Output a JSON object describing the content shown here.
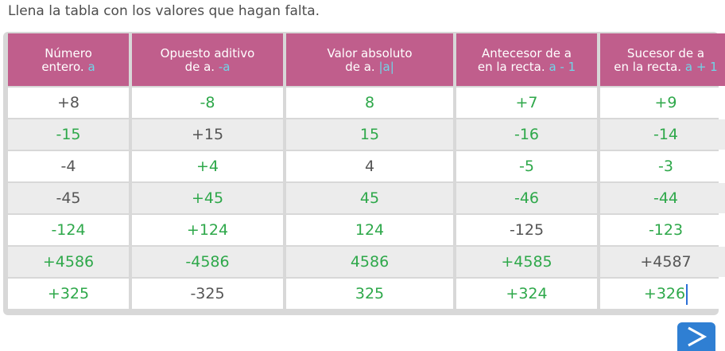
{
  "instruction": "Llena la tabla con los valores que hagan falta.",
  "headers": [
    {
      "line1": "Número",
      "line2": "entero.",
      "var": "a"
    },
    {
      "line1": "Opuesto aditivo",
      "line2": "de a.",
      "var": "-a"
    },
    {
      "line1": "Valor absoluto",
      "line2": "de a.",
      "var": "|a|"
    },
    {
      "line1": "Antecesor de a",
      "line2": "en la recta.",
      "var": "a - 1"
    },
    {
      "line1": "Sucesor de a",
      "line2": "en la recta.",
      "var": "a + 1"
    }
  ],
  "rows": [
    [
      "+8",
      "-8",
      "8",
      "+7",
      "+9"
    ],
    [
      "-15",
      "+15",
      "15",
      "-16",
      "-14"
    ],
    [
      "-4",
      "+4",
      "4",
      "-5",
      "-3"
    ],
    [
      "-45",
      "+45",
      "45",
      "-46",
      "-44"
    ],
    [
      "-124",
      "+124",
      "124",
      "-125",
      "-123"
    ],
    [
      "+4586",
      "-4586",
      "4586",
      "+4585",
      "+4587"
    ],
    [
      "+325",
      "-325",
      "325",
      "+324",
      "+326"
    ]
  ],
  "cell_status": [
    [
      "given",
      "answer",
      "answer",
      "answer",
      "answer"
    ],
    [
      "answer",
      "given",
      "answer",
      "answer",
      "answer"
    ],
    [
      "given",
      "answer",
      "given",
      "answer",
      "answer"
    ],
    [
      "given",
      "answer",
      "answer",
      "answer",
      "answer"
    ],
    [
      "answer",
      "answer",
      "answer",
      "given",
      "answer"
    ],
    [
      "answer",
      "answer",
      "answer",
      "answer",
      "given"
    ],
    [
      "answer",
      "given",
      "answer",
      "answer",
      "answer"
    ]
  ],
  "colors": {
    "header_bg": "#c05e8c",
    "header_var": "#6fd6e8",
    "answer_text": "#2ea84a",
    "given_text": "#555555",
    "next_button": "#2f7fd3"
  },
  "next_button_icon": "chevron-right-icon"
}
